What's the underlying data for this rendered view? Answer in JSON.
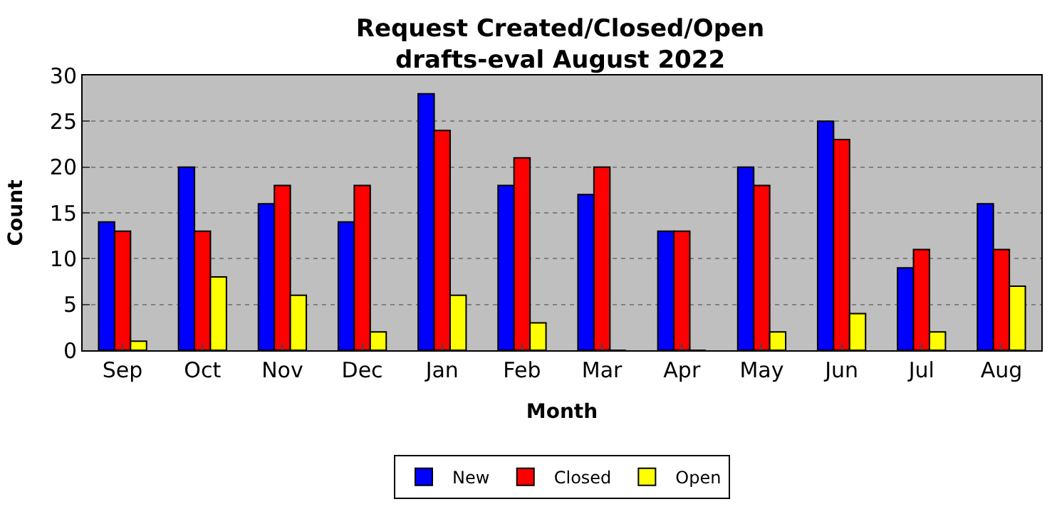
{
  "chart_data": {
    "type": "bar",
    "title": "Request Created/Closed/Open\ndrafts-eval August 2022",
    "xlabel": "Month",
    "ylabel": "Count",
    "categories": [
      "Sep",
      "Oct",
      "Nov",
      "Dec",
      "Jan",
      "Feb",
      "Mar",
      "Apr",
      "May",
      "Jun",
      "Jul",
      "Aug"
    ],
    "series": [
      {
        "name": "New",
        "color": "#0000ff",
        "values": [
          14,
          20,
          16,
          14,
          28,
          18,
          17,
          13,
          20,
          25,
          9,
          16
        ]
      },
      {
        "name": "Closed",
        "color": "#ff0000",
        "values": [
          13,
          13,
          18,
          18,
          24,
          21,
          20,
          13,
          18,
          23,
          11,
          11
        ]
      },
      {
        "name": "Open",
        "color": "#ffff00",
        "values": [
          1,
          8,
          6,
          2,
          6,
          3,
          0,
          0,
          2,
          4,
          2,
          7
        ]
      }
    ],
    "ylim": [
      0,
      30
    ],
    "yticks": [
      0,
      5,
      10,
      15,
      20,
      25,
      30
    ],
    "grid": "y",
    "legend": "bottom"
  }
}
